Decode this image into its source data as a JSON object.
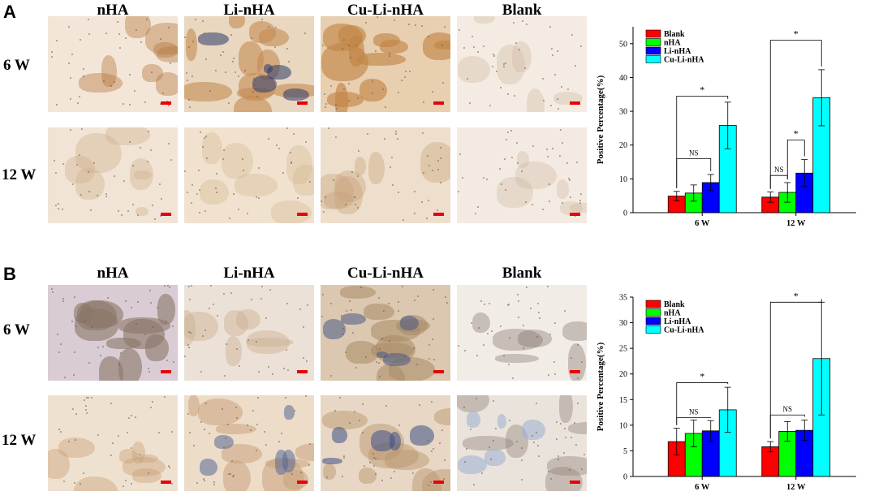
{
  "figure": {
    "panels": [
      {
        "letter": "A",
        "columns": [
          "nHA",
          "Li-nHA",
          "Cu-Li-nHA",
          "Blank"
        ],
        "rows": [
          "6 W",
          "12 W"
        ],
        "tiles": [
          {
            "row": "6 W",
            "col": "nHA",
            "tone": "#f3e6d8",
            "stain": "#b5763f",
            "density": 0.35
          },
          {
            "row": "6 W",
            "col": "Li-nHA",
            "tone": "#e9d7c0",
            "stain": "#c48a52",
            "density": 0.7,
            "dark": "#2b3a6a"
          },
          {
            "row": "6 W",
            "col": "Cu-Li-nHA",
            "tone": "#e7cfb0",
            "stain": "#c18444",
            "density": 0.75
          },
          {
            "row": "6 W",
            "col": "Blank",
            "tone": "#f4ece2",
            "stain": "#cdb49a",
            "density": 0.15
          },
          {
            "row": "12 W",
            "col": "nHA",
            "tone": "#f1e4d6",
            "stain": "#cfae88",
            "density": 0.25
          },
          {
            "row": "12 W",
            "col": "Li-nHA",
            "tone": "#f0e2cf",
            "stain": "#d3b890",
            "density": 0.25
          },
          {
            "row": "12 W",
            "col": "Cu-Li-nHA",
            "tone": "#eedfcd",
            "stain": "#c7a27b",
            "density": 0.3
          },
          {
            "row": "12 W",
            "col": "Blank",
            "tone": "#f3ebe2",
            "stain": "#cbb49c",
            "density": 0.15
          }
        ]
      },
      {
        "letter": "B",
        "columns": [
          "nHA",
          "Li-nHA",
          "Cu-Li-nHA",
          "Blank"
        ],
        "rows": [
          "6 W",
          "12 W"
        ],
        "tiles": [
          {
            "row": "6 W",
            "col": "nHA",
            "tone": "#d9ccd4",
            "stain": "#8a7468",
            "density": 0.7
          },
          {
            "row": "6 W",
            "col": "Li-nHA",
            "tone": "#ece1d6",
            "stain": "#c9a98a",
            "density": 0.3
          },
          {
            "row": "6 W",
            "col": "Cu-Li-nHA",
            "tone": "#dcc7b0",
            "stain": "#a88a66",
            "density": 0.6,
            "dark": "#4a5a86"
          },
          {
            "row": "6 W",
            "col": "Blank",
            "tone": "#f2ece6",
            "stain": "#7a6a60",
            "density": 0.2
          },
          {
            "row": "12 W",
            "col": "nHA",
            "tone": "#efe1cf",
            "stain": "#c89f76",
            "density": 0.35
          },
          {
            "row": "12 W",
            "col": "Li-nHA",
            "tone": "#ecdcc8",
            "stain": "#c59c72",
            "density": 0.45,
            "dark": "#5a6a96"
          },
          {
            "row": "12 W",
            "col": "Cu-Li-nHA",
            "tone": "#e7d7c4",
            "stain": "#b8956c",
            "density": 0.45,
            "dark": "#3e4f86"
          },
          {
            "row": "12 W",
            "col": "Blank",
            "tone": "#eae3dc",
            "stain": "#8c7c70",
            "density": 0.25,
            "dark": "#9aaed0"
          }
        ]
      }
    ]
  },
  "chart_data": [
    {
      "type": "bar",
      "panel": "A",
      "categories": [
        "6 W",
        "12 W"
      ],
      "ylabel": "Positive Percentage(%)",
      "ylim": [
        0,
        55
      ],
      "yticks": [
        0,
        10,
        20,
        30,
        40,
        50
      ],
      "legend_position": "top-left",
      "series": [
        {
          "name": "Blank",
          "color": "#ff0000",
          "values": [
            4.9,
            4.6
          ],
          "errors": [
            1.4,
            1.5
          ]
        },
        {
          "name": "nHA",
          "color": "#00ff00",
          "values": [
            5.8,
            6.0
          ],
          "errors": [
            2.4,
            2.9
          ]
        },
        {
          "name": "Li-nHA",
          "color": "#0000ff",
          "values": [
            8.9,
            11.7
          ],
          "errors": [
            2.4,
            4.0
          ]
        },
        {
          "name": "Cu-Li-nHA",
          "color": "#00ffff",
          "values": [
            25.8,
            34.0
          ],
          "errors": [
            6.9,
            8.3
          ]
        }
      ],
      "significance": [
        {
          "category": "6 W",
          "from": "Blank",
          "to": "Li-nHA",
          "label": "NS",
          "bracket_y": 16.0
        },
        {
          "category": "6 W",
          "from": "Blank",
          "to": "Cu-Li-nHA",
          "label": "*",
          "bracket_y": 34.5
        },
        {
          "category": "12 W",
          "from": "Blank",
          "to": "nHA",
          "label": "NS",
          "bracket_y": 11.0
        },
        {
          "category": "12 W",
          "from": "nHA",
          "to": "Li-nHA",
          "label": "*",
          "bracket_y": 21.5
        },
        {
          "category": "12 W",
          "from": "Blank",
          "to": "Cu-Li-nHA",
          "label": "*",
          "bracket_y": 51.0
        }
      ]
    },
    {
      "type": "bar",
      "panel": "B",
      "categories": [
        "6 W",
        "12 W"
      ],
      "ylabel": "Positive Percentage(%)",
      "ylim": [
        0,
        35
      ],
      "yticks": [
        0,
        5,
        10,
        15,
        20,
        25,
        30,
        35
      ],
      "legend_position": "top-left",
      "series": [
        {
          "name": "Blank",
          "color": "#ff0000",
          "values": [
            6.8,
            5.8
          ],
          "errors": [
            2.6,
            1.0
          ]
        },
        {
          "name": "nHA",
          "color": "#00ff00",
          "values": [
            8.4,
            8.8
          ],
          "errors": [
            2.6,
            1.9
          ]
        },
        {
          "name": "Li-nHA",
          "color": "#0000ff",
          "values": [
            8.9,
            9.0
          ],
          "errors": [
            2.0,
            2.0
          ]
        },
        {
          "name": "Cu-Li-nHA",
          "color": "#00ffff",
          "values": [
            13.0,
            23.0
          ],
          "errors": [
            4.4,
            11.0
          ]
        }
      ],
      "significance": [
        {
          "category": "6 W",
          "from": "Blank",
          "to": "Li-nHA",
          "label": "NS",
          "bracket_y": 11.5
        },
        {
          "category": "6 W",
          "from": "Blank",
          "to": "Cu-Li-nHA",
          "label": "*",
          "bracket_y": 18.3
        },
        {
          "category": "12 W",
          "from": "Blank",
          "to": "Li-nHA",
          "label": "NS",
          "bracket_y": 12.0
        },
        {
          "category": "12 W",
          "from": "Blank",
          "to": "Cu-Li-nHA",
          "label": "*",
          "bracket_y": 34.0
        }
      ]
    }
  ]
}
